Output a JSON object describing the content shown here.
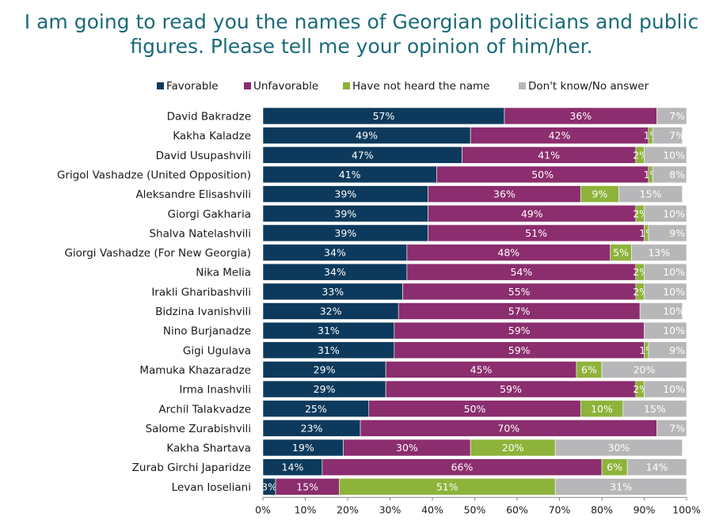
{
  "title_lines": [
    "I am going to read you the names of Georgian politicians and public",
    "figures. Please tell me your opinion of him/her."
  ],
  "chart_data": {
    "type": "bar",
    "orientation": "horizontal",
    "stacked": true,
    "title": "I am going to read you the names of Georgian politicians and public figures. Please tell me your opinion of him/her.",
    "legend_placement": "top",
    "xlim": [
      0,
      100
    ],
    "x_ticks": [
      "0%",
      "10%",
      "20%",
      "30%",
      "40%",
      "50%",
      "60%",
      "70%",
      "80%",
      "90%",
      "100%"
    ],
    "categories": [
      "David Bakradze",
      "Kakha Kaladze",
      "David Usupashvili",
      "Grigol Vashadze (United Opposition)",
      "Aleksandre Elisashvili",
      "Giorgi Gakharia",
      "Shalva Natelashvili",
      "Giorgi Vashadze (For New Georgia)",
      "Nika Melia",
      "Irakli Gharibashvili",
      "Bidzina Ivanishvili",
      "Nino Burjanadze",
      "Gigi Ugulava",
      "Mamuka Khazaradze",
      "Irma Inashvili",
      "Archil Talakvadze",
      "Salome Zurabishvili",
      "Kakha Shartava",
      "Zurab Girchi Japaridze",
      "Levan Ioseliani"
    ],
    "series": [
      {
        "name": "Favorable",
        "color": "#0d3a5c",
        "values": [
          57,
          49,
          47,
          41,
          39,
          39,
          39,
          34,
          34,
          33,
          32,
          31,
          31,
          29,
          29,
          25,
          23,
          19,
          14,
          3
        ]
      },
      {
        "name": "Unfavorable",
        "color": "#8b2d6e",
        "values": [
          36,
          42,
          41,
          50,
          36,
          49,
          51,
          48,
          54,
          55,
          57,
          59,
          59,
          45,
          59,
          50,
          70,
          30,
          66,
          15
        ]
      },
      {
        "name": "Have not heard the name",
        "color": "#8db33a",
        "values": [
          0,
          1,
          2,
          1,
          9,
          2,
          1,
          5,
          2,
          2,
          0,
          0,
          1,
          6,
          2,
          10,
          0,
          20,
          6,
          51
        ]
      },
      {
        "name": "Don't know/No answer",
        "color": "#b7b7b9",
        "values": [
          7,
          7,
          10,
          8,
          15,
          10,
          9,
          13,
          10,
          10,
          10,
          10,
          9,
          20,
          10,
          15,
          7,
          30,
          14,
          31
        ]
      }
    ]
  }
}
